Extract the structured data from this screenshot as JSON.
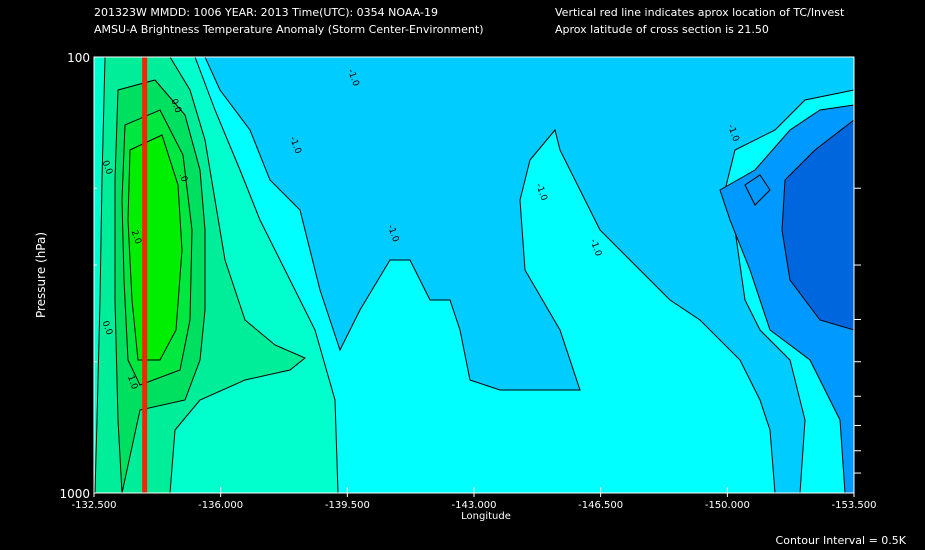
{
  "header": {
    "line1_left": "201323W  MMDD: 1006 YEAR: 2013 Time(UTC): 0354 NOAA-19",
    "line2_left": "AMSU-A Brightness Temperature Anomaly (Storm Center-Environment)",
    "line1_right": "Vertical red line indicates aprox location of TC/Invest",
    "line2_right": "Aprox latitude of cross section is 21.50"
  },
  "footer": {
    "contour_interval": "Contour Interval = 0.5K"
  },
  "chart_data": {
    "type": "heatmap",
    "title": "AMSU-A Brightness Temperature Anomaly (Storm Center-Environment)",
    "xlabel": "Longitude",
    "ylabel": "Pressure (hPa)",
    "xlim": [
      -132.5,
      -153.5
    ],
    "ylim": [
      1000,
      100
    ],
    "x_ticks": [
      "-132.500",
      "-136.000",
      "-139.500",
      "-143.000",
      "-146.500",
      "-150.000",
      "-153.500"
    ],
    "y_tick_labels": [
      "100",
      "1000"
    ],
    "y_minor_ticks_hpa": [
      200,
      300,
      400,
      500,
      600,
      700,
      800,
      900
    ],
    "tc_longitude": -133.9,
    "contour_interval_k": 0.5,
    "levels": [
      -1.5,
      -1.0,
      -0.5,
      0.0,
      0.5,
      1.0,
      1.5,
      2.0,
      2.5,
      3.0
    ],
    "contour_labels": [
      {
        "text": "0.0",
        "lon": -134.7,
        "p": 130
      },
      {
        "text": "0.0",
        "lon": -132.8,
        "p": 180
      },
      {
        "text": "0.0",
        "lon": -132.8,
        "p": 420
      },
      {
        "text": ".0",
        "lon": -134.9,
        "p": 190
      },
      {
        "text": "2.0",
        "lon": -133.6,
        "p": 260
      },
      {
        "text": "1.0",
        "lon": -133.5,
        "p": 560
      },
      {
        "text": "-1.0",
        "lon": -139.6,
        "p": 112
      },
      {
        "text": "-1.0",
        "lon": -138.0,
        "p": 160
      },
      {
        "text": "-1.0",
        "lon": -140.7,
        "p": 255
      },
      {
        "text": "-1.0",
        "lon": -144.8,
        "p": 205
      },
      {
        "text": "-1.0",
        "lon": -146.3,
        "p": 275
      },
      {
        "text": "-1.0",
        "lon": -150.1,
        "p": 150
      }
    ],
    "colorscale": [
      {
        "level": "<-1.5",
        "color": "#0066dd"
      },
      {
        "level": "-1.5..-1.0",
        "color": "#0099ff"
      },
      {
        "level": "-1.0..-0.5",
        "color": "#00ccff"
      },
      {
        "level": "-0.5..0.0",
        "color": "#00ffff"
      },
      {
        "level": "0.0..0.5",
        "color": "#00ffcc"
      },
      {
        "level": "0.5..1.0",
        "color": "#00ee99"
      },
      {
        "level": "1.0..1.5",
        "color": "#00e060"
      },
      {
        "level": "1.5..2.0",
        "color": "#00e840"
      },
      {
        "level": ">2.0",
        "color": "#00ee00"
      }
    ],
    "tc_line_color": "#ff2200"
  }
}
